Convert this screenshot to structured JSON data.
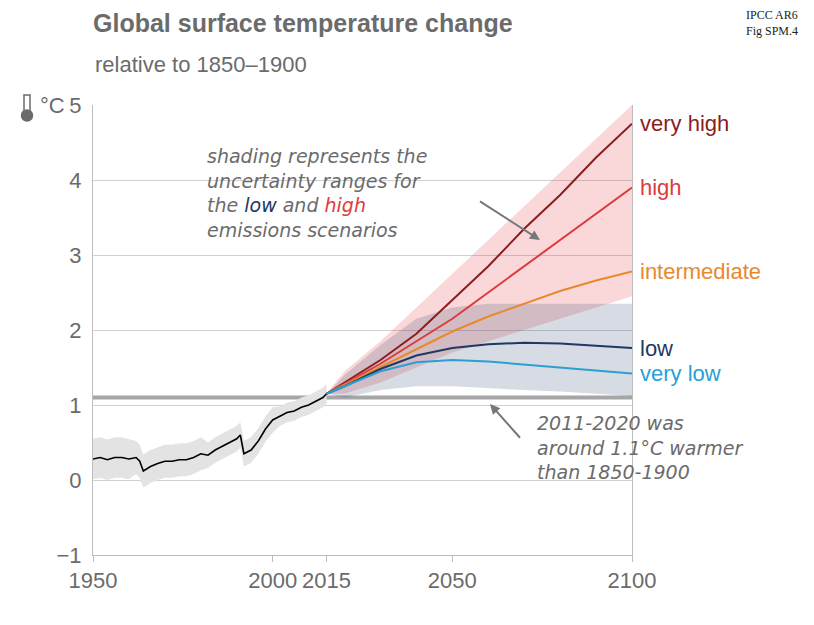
{
  "chart_data": {
    "type": "line",
    "title": "Global surface temperature change",
    "subtitle": "relative to 1850–1900",
    "source": [
      "IPCC AR6",
      "Fig SPM.4"
    ],
    "ylabel": "°C",
    "xlim": [
      1950,
      2100
    ],
    "xticks": [
      1950,
      2000,
      2015,
      2050,
      2100
    ],
    "ylim": [
      -1,
      5
    ],
    "yticks": [
      {
        "value": -1,
        "label": "−1"
      },
      0,
      1,
      2,
      3,
      4,
      5
    ],
    "grid": "y",
    "reference": {
      "value": 1.1,
      "color": "#a6a6a6"
    },
    "series": [
      {
        "color": "#000000",
        "x": [
          1950,
          1952,
          1954,
          1956,
          1958,
          1960,
          1962,
          1963,
          1964,
          1966,
          1968,
          1970,
          1972,
          1974,
          1976,
          1978,
          1980,
          1982,
          1984,
          1986,
          1988,
          1990,
          1991,
          1992,
          1994,
          1996,
          1998,
          2000,
          2002,
          2004,
          2006,
          2008,
          2010,
          2012,
          2014,
          2015
        ],
        "values": [
          0.28,
          0.3,
          0.27,
          0.3,
          0.3,
          0.28,
          0.3,
          0.25,
          0.12,
          0.18,
          0.22,
          0.25,
          0.25,
          0.27,
          0.27,
          0.3,
          0.35,
          0.33,
          0.4,
          0.45,
          0.5,
          0.55,
          0.6,
          0.35,
          0.4,
          0.52,
          0.68,
          0.8,
          0.85,
          0.9,
          0.92,
          0.97,
          1.0,
          1.05,
          1.1,
          1.15
        ],
        "range": {
          "color": "#e3e3e3",
          "lower": [
            0.01,
            0.03,
            0.0,
            0.03,
            0.03,
            0.01,
            0.08,
            0.03,
            -0.1,
            -0.04,
            0.0,
            0.03,
            0.03,
            0.05,
            0.05,
            0.08,
            0.13,
            0.16,
            0.23,
            0.28,
            0.33,
            0.38,
            0.43,
            0.18,
            0.23,
            0.35,
            0.51,
            0.63,
            0.72,
            0.77,
            0.79,
            0.84,
            0.87,
            0.92,
            0.97,
            1.02
          ],
          "upper": [
            0.55,
            0.57,
            0.54,
            0.57,
            0.57,
            0.55,
            0.52,
            0.47,
            0.34,
            0.4,
            0.44,
            0.47,
            0.47,
            0.49,
            0.49,
            0.52,
            0.57,
            0.5,
            0.57,
            0.62,
            0.67,
            0.72,
            0.77,
            0.52,
            0.57,
            0.69,
            0.85,
            0.97,
            0.98,
            1.03,
            1.05,
            1.1,
            1.13,
            1.18,
            1.23,
            1.28
          ]
        }
      },
      {
        "name": "very high",
        "color": "#8b1d1d",
        "x": [
          2015,
          2020,
          2030,
          2040,
          2050,
          2060,
          2070,
          2080,
          2090,
          2100
        ],
        "values": [
          1.15,
          1.3,
          1.6,
          1.95,
          2.4,
          2.85,
          3.35,
          3.8,
          4.3,
          4.75
        ]
      },
      {
        "name": "high",
        "color": "#dc3b3b",
        "x": [
          2015,
          2020,
          2030,
          2040,
          2050,
          2060,
          2070,
          2080,
          2090,
          2100
        ],
        "values": [
          1.15,
          1.28,
          1.55,
          1.85,
          2.15,
          2.5,
          2.85,
          3.2,
          3.55,
          3.9
        ],
        "range": {
          "color": "rgba(230,60,70,0.2)",
          "lower": [
            1.15,
            1.15,
            1.3,
            1.5,
            1.7,
            1.85,
            2.0,
            2.15,
            2.3,
            2.45
          ],
          "upper": [
            1.15,
            1.45,
            1.85,
            2.3,
            2.75,
            3.2,
            3.65,
            4.1,
            4.55,
            5.0
          ]
        }
      },
      {
        "name": "intermediate",
        "color": "#e8892c",
        "x": [
          2015,
          2020,
          2030,
          2040,
          2050,
          2060,
          2070,
          2080,
          2090,
          2100
        ],
        "values": [
          1.15,
          1.27,
          1.5,
          1.75,
          1.98,
          2.18,
          2.35,
          2.52,
          2.66,
          2.78
        ]
      },
      {
        "name": "low",
        "color": "#1f3864",
        "x": [
          2015,
          2020,
          2030,
          2040,
          2050,
          2060,
          2070,
          2080,
          2090,
          2100
        ],
        "values": [
          1.15,
          1.25,
          1.48,
          1.66,
          1.76,
          1.81,
          1.83,
          1.82,
          1.79,
          1.76
        ],
        "range": {
          "color": "rgba(31,56,100,0.18)",
          "lower": [
            1.15,
            1.1,
            1.2,
            1.25,
            1.25,
            1.22,
            1.2,
            1.18,
            1.15,
            1.12
          ],
          "upper": [
            1.15,
            1.4,
            1.8,
            2.15,
            2.3,
            2.35,
            2.35,
            2.35,
            2.35,
            2.35
          ]
        }
      },
      {
        "name": "very low",
        "color": "#2a9fd6",
        "x": [
          2015,
          2020,
          2030,
          2040,
          2050,
          2060,
          2070,
          2080,
          2090,
          2100
        ],
        "values": [
          1.15,
          1.25,
          1.45,
          1.57,
          1.6,
          1.58,
          1.54,
          1.5,
          1.46,
          1.42
        ]
      }
    ],
    "annotations": [
      {
        "lines": [
          "shading represents the",
          "uncertainty ranges for",
          "the low and high",
          "emissions scenarios"
        ],
        "highlights": {
          "low": "#1f3864",
          "high": "#dc3b3b"
        }
      },
      {
        "lines": [
          "2011-2020 was",
          "around 1.1°C warmer",
          "than 1850-1900"
        ]
      }
    ]
  }
}
